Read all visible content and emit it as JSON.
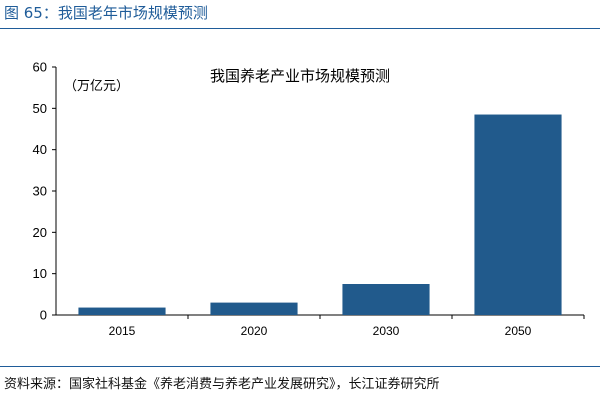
{
  "figure_title": "图 65：我国老年市场规模预测",
  "source": "资料来源：国家社科基金《养老消费与养老产业发展研究》，长江证券研究所",
  "colors": {
    "accent": "#1f5c99",
    "bar": "#215a8c"
  },
  "chart_data": {
    "type": "bar",
    "title": "我国养老产业市场规模预测",
    "ylabel": "（万亿元）",
    "xlabel": "",
    "categories": [
      "2015",
      "2020",
      "2030",
      "2050"
    ],
    "values": [
      1.8,
      3.0,
      7.5,
      48.5
    ],
    "ylim": [
      0,
      60
    ],
    "yticks": [
      0,
      10,
      20,
      30,
      40,
      50,
      60
    ],
    "grid": false,
    "legend": "none"
  }
}
